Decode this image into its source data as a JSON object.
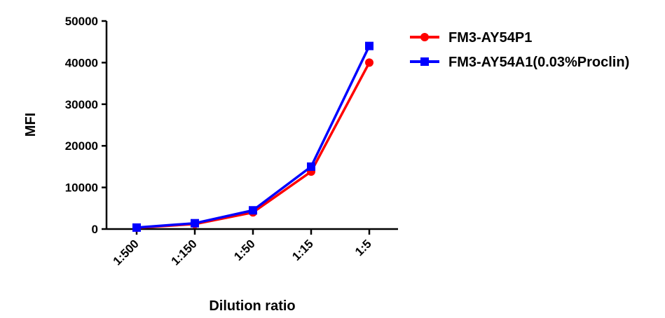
{
  "chart_data": {
    "type": "line",
    "title": "",
    "xlabel": "Dilution ratio",
    "ylabel": "MFI",
    "categories": [
      "1:500",
      "1:150",
      "1:50",
      "1:15",
      "1:5"
    ],
    "ylim": [
      0,
      50000
    ],
    "yticks": [
      0,
      10000,
      20000,
      30000,
      40000,
      50000
    ],
    "grid": false,
    "legend_position": "top-right",
    "series": [
      {
        "name": "FM3-AY54P1",
        "color": "#ff0000",
        "marker": "circle",
        "values": [
          300,
          1200,
          4000,
          13800,
          40000
        ]
      },
      {
        "name": "FM3-AY54A1(0.03%Proclin)",
        "color": "#0000ff",
        "marker": "square",
        "values": [
          350,
          1400,
          4500,
          15000,
          44000
        ]
      }
    ]
  }
}
